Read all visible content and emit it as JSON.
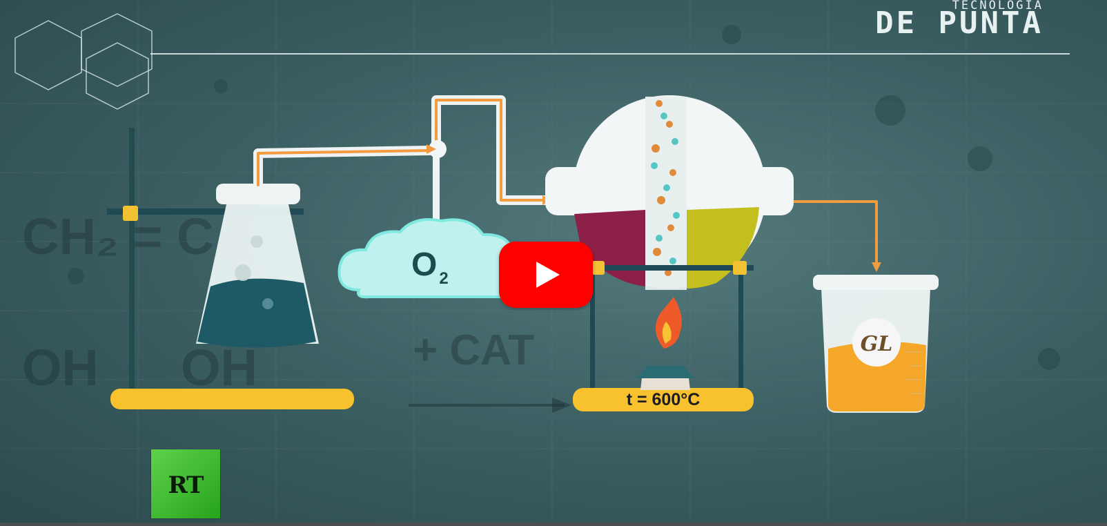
{
  "brand": {
    "small": "TECNOLOGÍA",
    "big": "DE PUNTA"
  },
  "channel_logo": {
    "text": "RT"
  },
  "player": {
    "play_icon": "play-icon"
  },
  "scene": {
    "gas_label": "O",
    "gas_subscript": "2",
    "temperature_label": "t = 600°C",
    "beaker_label": "GL",
    "background_formula_top": "CH₂ = C",
    "background_formula_oh1": "OH",
    "background_formula_oh2": "OH",
    "background_catalyst": "+ CAT"
  },
  "colors": {
    "background": "#3d6164",
    "accent_orange": "#f29b3f",
    "stand_yellow": "#f7c22e",
    "play_red": "#ff0000",
    "rt_green": "#3fbf2e"
  }
}
